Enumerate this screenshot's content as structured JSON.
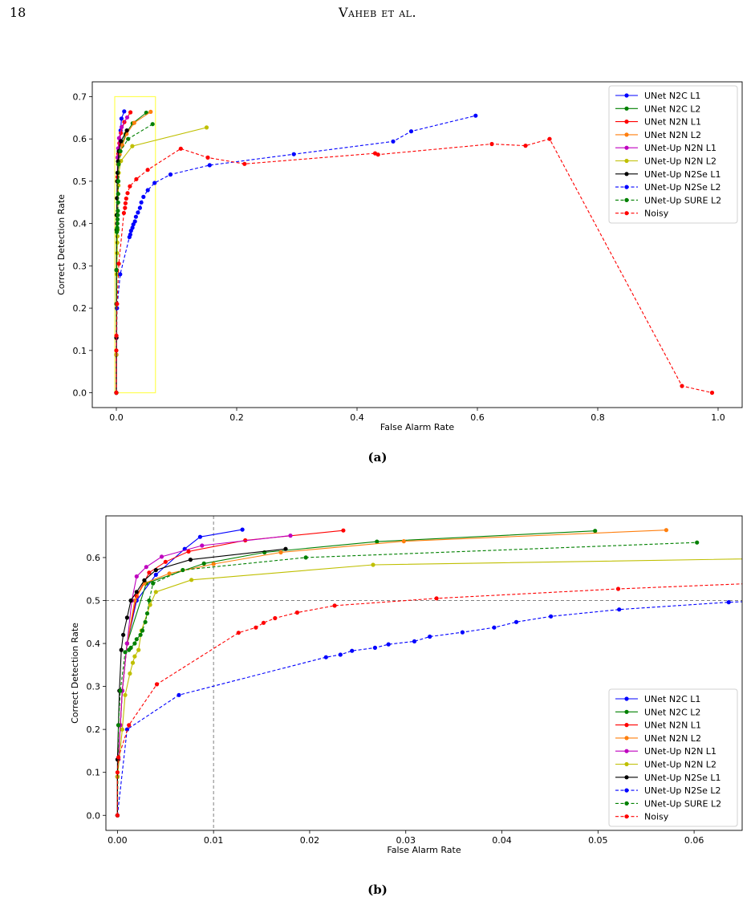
{
  "page": {
    "number": "18",
    "running_head": "Vaheb et al."
  },
  "captions": [
    "(a)",
    "(b)"
  ],
  "chart_data": [
    {
      "type": "line",
      "xlabel": "False Alarm Rate",
      "ylabel": "Correct Detection Rate",
      "xlim": [
        -0.04,
        1.04
      ],
      "ylim": [
        -0.035,
        0.735
      ],
      "xticks": [
        0.0,
        0.2,
        0.4,
        0.6,
        0.8,
        1.0
      ],
      "xtick_labels": [
        "0.0",
        "0.2",
        "0.4",
        "0.6",
        "0.8",
        "1.0"
      ],
      "yticks": [
        0.0,
        0.1,
        0.2,
        0.3,
        0.4,
        0.5,
        0.6,
        0.7
      ],
      "ytick_labels": [
        "0.0",
        "0.1",
        "0.2",
        "0.3",
        "0.4",
        "0.5",
        "0.6",
        "0.7"
      ],
      "legend_position": "top-right",
      "highlight_box": {
        "x": [
          0.0,
          0.065
        ],
        "y": [
          0.0,
          0.7
        ],
        "color": "#ffff55"
      },
      "series": [
        {
          "name": "UNet N2C L1",
          "color": "#0000ff",
          "dashed": false,
          "x": [
            0,
            0,
            0.0001,
            0.0003,
            0.0005,
            0.001,
            0.002,
            0.004,
            0.007,
            0.0086,
            0.013
          ],
          "y": [
            0,
            0.09,
            0.13,
            0.21,
            0.29,
            0.4,
            0.5,
            0.56,
            0.62,
            0.648,
            0.665
          ]
        },
        {
          "name": "UNet N2C L2",
          "color": "#008000",
          "dashed": false,
          "x": [
            0,
            0,
            0.0001,
            0.0003,
            0.0005,
            0.001,
            0.003,
            0.009,
            0.0153,
            0.027,
            0.0497
          ],
          "y": [
            0,
            0.09,
            0.13,
            0.21,
            0.29,
            0.4,
            0.54,
            0.586,
            0.612,
            0.637,
            0.662
          ]
        },
        {
          "name": "UNet N2N L1",
          "color": "#ff0000",
          "dashed": false,
          "x": [
            0,
            0,
            0.0001,
            0.0003,
            0.0005,
            0.001,
            0.002,
            0.0033,
            0.005,
            0.0074,
            0.0133,
            0.0235
          ],
          "y": [
            0,
            0.09,
            0.13,
            0.21,
            0.29,
            0.4,
            0.51,
            0.565,
            0.59,
            0.614,
            0.64,
            0.663
          ]
        },
        {
          "name": "UNet N2N L2",
          "color": "#ff7f0e",
          "dashed": false,
          "x": [
            0,
            0,
            0.0001,
            0.0003,
            0.0005,
            0.001,
            0.0018,
            0.0028,
            0.0054,
            0.01,
            0.017,
            0.0298,
            0.0571
          ],
          "y": [
            0,
            0.09,
            0.13,
            0.21,
            0.29,
            0.4,
            0.5,
            0.54,
            0.563,
            0.585,
            0.612,
            0.638,
            0.664
          ]
        },
        {
          "name": "UNet-Up N2N L1",
          "color": "#bf00bf",
          "dashed": false,
          "x": [
            0,
            0,
            0.0001,
            0.0003,
            0.0005,
            0.001,
            0.0015,
            0.002,
            0.003,
            0.0046,
            0.0088,
            0.018
          ],
          "y": [
            0,
            0.09,
            0.13,
            0.21,
            0.29,
            0.4,
            0.5,
            0.556,
            0.578,
            0.602,
            0.628,
            0.651
          ]
        },
        {
          "name": "UNet-Up N2N L2",
          "color": "#bfbf00",
          "dashed": false,
          "x": [
            0,
            0,
            0.0005,
            0.0008,
            0.0013,
            0.0016,
            0.0018,
            0.0022,
            0.0025,
            0.0034,
            0.004,
            0.0077,
            0.0266,
            0.15
          ],
          "y": [
            0,
            0.09,
            0.2,
            0.28,
            0.33,
            0.355,
            0.37,
            0.385,
            0.43,
            0.49,
            0.52,
            0.548,
            0.583,
            0.627
          ]
        },
        {
          "name": "UNet-Up N2Se L1",
          "color": "#000000",
          "dashed": false,
          "x": [
            0,
            0,
            0.0001,
            0.0002,
            0.0004,
            0.0006,
            0.001,
            0.0014,
            0.002,
            0.0028,
            0.004,
            0.0076,
            0.0175
          ],
          "y": [
            0,
            0.13,
            0.21,
            0.29,
            0.385,
            0.42,
            0.46,
            0.5,
            0.52,
            0.547,
            0.571,
            0.595,
            0.62
          ]
        },
        {
          "name": "UNet-Up N2Se L2",
          "color": "#0000ff",
          "dashed": true,
          "x": [
            0,
            0.001,
            0.0064,
            0.0217,
            0.0232,
            0.0244,
            0.0268,
            0.0282,
            0.0309,
            0.0325,
            0.0359,
            0.0392,
            0.0415,
            0.0451,
            0.0522,
            0.0636,
            0.09,
            0.155,
            0.295,
            0.46,
            0.49,
            0.597
          ],
          "y": [
            0,
            0.2,
            0.28,
            0.368,
            0.374,
            0.383,
            0.39,
            0.398,
            0.405,
            0.416,
            0.426,
            0.437,
            0.45,
            0.463,
            0.479,
            0.496,
            0.516,
            0.538,
            0.564,
            0.594,
            0.618,
            0.655
          ]
        },
        {
          "name": "UNet-Up SURE L2",
          "color": "#008000",
          "dashed": true,
          "x": [
            0,
            0.0001,
            0.0003,
            0.0008,
            0.0012,
            0.0014,
            0.0018,
            0.002,
            0.0024,
            0.0026,
            0.0029,
            0.0031,
            0.0033,
            0.0037,
            0.0068,
            0.0196,
            0.0603
          ],
          "y": [
            0,
            0.21,
            0.29,
            0.38,
            0.385,
            0.39,
            0.4,
            0.41,
            0.42,
            0.43,
            0.45,
            0.47,
            0.5,
            0.54,
            0.571,
            0.6,
            0.635
          ]
        },
        {
          "name": "Noisy",
          "color": "#ff0000",
          "dashed": true,
          "x": [
            0,
            0,
            0.0001,
            0.0012,
            0.0041,
            0.0126,
            0.0144,
            0.0152,
            0.0164,
            0.0187,
            0.0226,
            0.0332,
            0.0521,
            0.107,
            0.152,
            0.213,
            0.43,
            0.435,
            0.624,
            0.68,
            0.72,
            0.94,
            0.99
          ],
          "y": [
            0,
            0.1,
            0.135,
            0.21,
            0.305,
            0.425,
            0.437,
            0.448,
            0.459,
            0.472,
            0.488,
            0.505,
            0.527,
            0.577,
            0.556,
            0.541,
            0.566,
            0.563,
            0.588,
            0.584,
            0.6,
            0.016,
            0
          ]
        }
      ]
    },
    {
      "type": "line",
      "xlabel": "False Alarm Rate",
      "ylabel": "Correct Detection Rate",
      "xlim": [
        -0.0012,
        0.065
      ],
      "ylim": [
        -0.035,
        0.697
      ],
      "xticks": [
        0.0,
        0.01,
        0.02,
        0.03,
        0.04,
        0.05,
        0.06
      ],
      "xtick_labels": [
        "0.00",
        "0.01",
        "0.02",
        "0.03",
        "0.04",
        "0.05",
        "0.06"
      ],
      "yticks": [
        0.0,
        0.1,
        0.2,
        0.3,
        0.4,
        0.5,
        0.6
      ],
      "ytick_labels": [
        "0.0",
        "0.1",
        "0.2",
        "0.3",
        "0.4",
        "0.5",
        "0.6"
      ],
      "reference_lines": {
        "x": 0.01,
        "y": 0.5
      },
      "legend_position": "bottom-right"
    }
  ]
}
